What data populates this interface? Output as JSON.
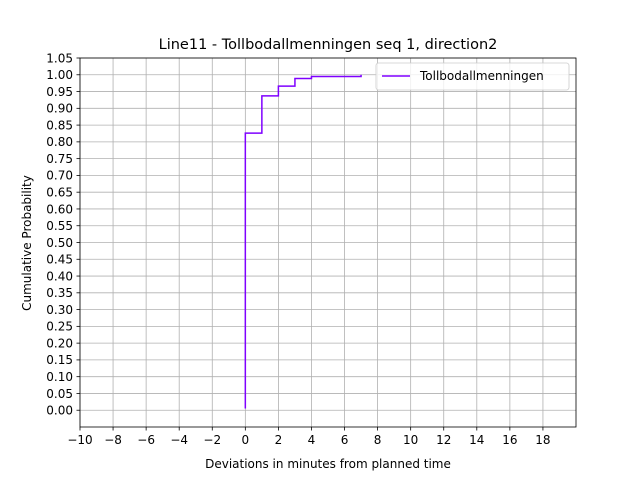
{
  "chart_data": {
    "type": "line",
    "drawstyle": "steps-post",
    "title": "Line11 - Tollbodallmenningen seq 1, direction2",
    "xlabel": "Deviations in minutes from planned time",
    "ylabel": "Cumulative Probability",
    "xlim": [
      -10,
      20
    ],
    "ylim": [
      -0.05,
      1.05
    ],
    "xticks": [
      -10,
      -8,
      -6,
      -4,
      -2,
      0,
      2,
      4,
      6,
      8,
      10,
      12,
      14,
      16,
      18
    ],
    "xtick_labels": [
      "−10",
      "−8",
      "−6",
      "−4",
      "−2",
      "0",
      "2",
      "4",
      "6",
      "8",
      "10",
      "12",
      "14",
      "16",
      "18"
    ],
    "yticks": [
      0,
      0.05,
      0.1,
      0.15,
      0.2,
      0.25,
      0.3,
      0.35,
      0.4,
      0.45,
      0.5,
      0.55,
      0.6,
      0.65,
      0.7,
      0.75,
      0.8,
      0.85,
      0.9,
      0.95,
      1.0,
      1.05
    ],
    "ytick_labels": [
      "0.00",
      "0.05",
      "0.10",
      "0.15",
      "0.20",
      "0.25",
      "0.30",
      "0.35",
      "0.40",
      "0.45",
      "0.50",
      "0.55",
      "0.60",
      "0.65",
      "0.70",
      "0.75",
      "0.80",
      "0.85",
      "0.90",
      "0.95",
      "1.00",
      "1.05"
    ],
    "grid": true,
    "legend_position": "top-right",
    "series": [
      {
        "name": "Tollbodallmenningen",
        "color": "#7f00ff",
        "x": [
          0,
          0,
          1,
          2,
          3,
          4,
          7
        ],
        "y": [
          0.005,
          0.826,
          0.937,
          0.966,
          0.989,
          0.995,
          1.0
        ]
      }
    ]
  }
}
